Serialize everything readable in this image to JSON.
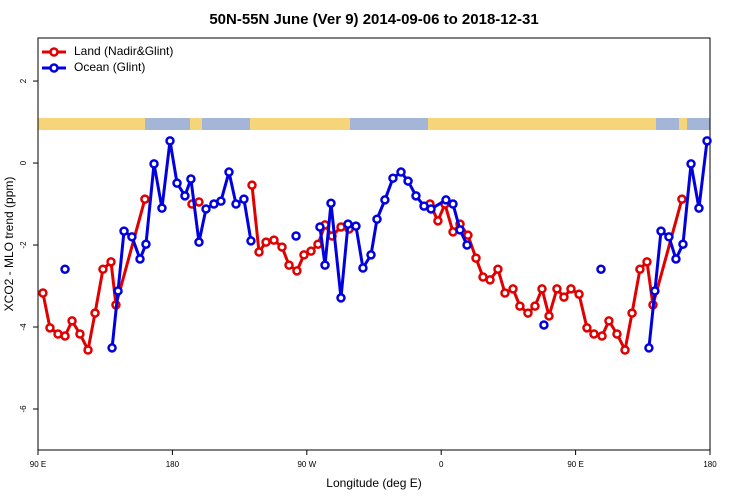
{
  "chart_data": {
    "type": "line",
    "title": "50N-55N June (Ver 9)   2014-09-06 to 2018-12-31",
    "x_label": "Longitude (deg E)",
    "y_label": "XCO2 - MLO trend (ppm)",
    "xlim": [
      90,
      540
    ],
    "ylim": [
      -7,
      3.05
    ],
    "xticks": [
      {
        "value": 90,
        "label": "90 E"
      },
      180,
      {
        "value": 270,
        "label": "90 W"
      },
      {
        "value": 360,
        "label": "0"
      },
      {
        "value": 450,
        "label": "90 E"
      },
      {
        "value": 540,
        "label": "180"
      }
    ],
    "yticks": [
      2,
      0,
      -2,
      -4,
      -6
    ],
    "legend": "topleft",
    "series": [
      {
        "name": "Land (Nadir&Glint)",
        "color": "#e00000",
        "x": [
          93.3,
          98.0,
          103.4,
          108.1,
          112.8,
          118.1,
          123.5,
          128.2,
          133.5,
          138.9,
          142.2,
          161.6,
          null,
          193.1,
          197.8,
          null,
          233.3,
          238.0,
          242.7,
          248.0,
          253.4,
          258.1,
          263.4,
          268.1,
          272.8,
          277.5,
          282.2,
          286.9,
          292.9,
          298.3,
          null,
          352.5,
          357.8,
          362.5,
          367.9,
          372.6,
          377.9,
          383.3,
          388.0,
          392.7,
          398.0,
          402.7,
          408.1,
          412.7,
          418.1,
          422.8,
          427.5,
          432.2,
          437.5,
          442.2,
          446.9,
          452.3,
          457.6,
          462.3,
          467.7,
          472.3,
          477.7,
          483.1,
          487.8,
          493.1,
          497.8,
          501.8,
          521.2
        ],
        "values": [
          -3.17,
          -4.02,
          -4.17,
          -4.22,
          -3.85,
          -4.17,
          -4.56,
          -3.66,
          -2.59,
          -2.41,
          -3.46,
          -0.88,
          null,
          -1.0,
          -0.95,
          null,
          -0.54,
          -2.17,
          -1.93,
          -1.88,
          -2.05,
          -2.49,
          -2.63,
          -2.24,
          -2.15,
          -1.98,
          -1.51,
          -1.78,
          -1.56,
          -1.61,
          null,
          -1.0,
          -1.41,
          -1.0,
          -1.68,
          -1.49,
          -1.76,
          -2.32,
          -2.78,
          -2.85,
          -2.59,
          -3.17,
          -3.07,
          -3.49,
          -3.66,
          -3.49,
          -3.07,
          -3.73,
          -3.07,
          -3.27,
          -3.07,
          -3.2,
          -4.02,
          -4.17,
          -4.22,
          -3.85,
          -4.17,
          -4.56,
          -3.66,
          -2.59,
          -2.41,
          -3.46,
          -0.88
        ]
      },
      {
        "name": "Ocean (Glint)",
        "color": "#0000e0",
        "x": [
          108.1,
          null,
          139.6,
          143.6,
          147.6,
          152.9,
          158.3,
          162.3,
          167.7,
          173.0,
          178.4,
          183.1,
          188.4,
          192.4,
          197.8,
          202.5,
          207.8,
          212.5,
          217.9,
          222.6,
          227.9,
          232.6,
          null,
          262.8,
          null,
          278.8,
          282.2,
          286.2,
          292.9,
          297.6,
          302.9,
          307.6,
          313.0,
          317.0,
          322.3,
          327.7,
          333.1,
          337.8,
          343.1,
          348.5,
          353.2,
          363.2,
          367.9,
          372.6,
          377.3,
          null,
          428.8,
          null,
          467.0,
          null,
          499.1,
          503.1,
          507.2,
          512.5,
          517.2,
          521.9,
          527.3,
          532.6,
          538.0
        ],
        "values": [
          -2.59,
          null,
          -4.51,
          -3.12,
          -1.66,
          -1.8,
          -2.34,
          -1.98,
          -0.02,
          -1.1,
          0.54,
          -0.49,
          -0.8,
          -0.39,
          -1.93,
          -1.12,
          -1.0,
          -0.93,
          -0.22,
          -1.0,
          -0.88,
          -1.9,
          null,
          -1.78,
          null,
          -1.56,
          -2.49,
          -0.98,
          -3.29,
          -1.49,
          -1.54,
          -2.56,
          -2.24,
          -1.37,
          -0.9,
          -0.37,
          -0.22,
          -0.44,
          -0.8,
          -1.05,
          -1.12,
          -0.9,
          -1.0,
          -1.63,
          -2.0,
          null,
          -3.95,
          null,
          -2.59,
          null,
          -4.51,
          -3.12,
          -1.66,
          -1.8,
          -2.34,
          -1.98,
          -0.02,
          -1.1,
          0.54
        ]
      }
    ]
  }
}
